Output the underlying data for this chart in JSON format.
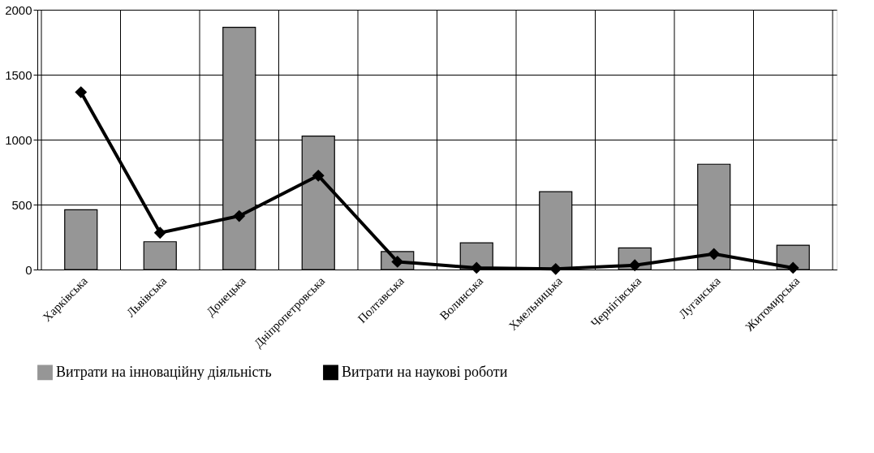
{
  "chart_data": {
    "type": "bar",
    "categories": [
      "Харківська",
      "Львівська",
      "Донецька",
      "Дніпропетровська",
      "Полтавська",
      "Волинська",
      "Хмельницька",
      "Чернігівська",
      "Луганська",
      "Житомирська"
    ],
    "series": [
      {
        "name": "Витрати на інноваційну діяльність",
        "color": "#969696",
        "values": [
          460,
          214,
          1865,
          1027,
          138,
          205,
          599,
          167,
          811,
          187
        ]
      },
      {
        "name": "Витрати на наукові роботи",
        "type": "line",
        "color": "#000000",
        "marker": "diamond",
        "values": [
          1365,
          283,
          412,
          723,
          60,
          13,
          4,
          33,
          120,
          13
        ]
      }
    ],
    "ylim": [
      0,
      2000
    ],
    "yticks": [
      0,
      500,
      1000,
      1500,
      2000
    ],
    "grid": true,
    "legend": "bottom"
  }
}
